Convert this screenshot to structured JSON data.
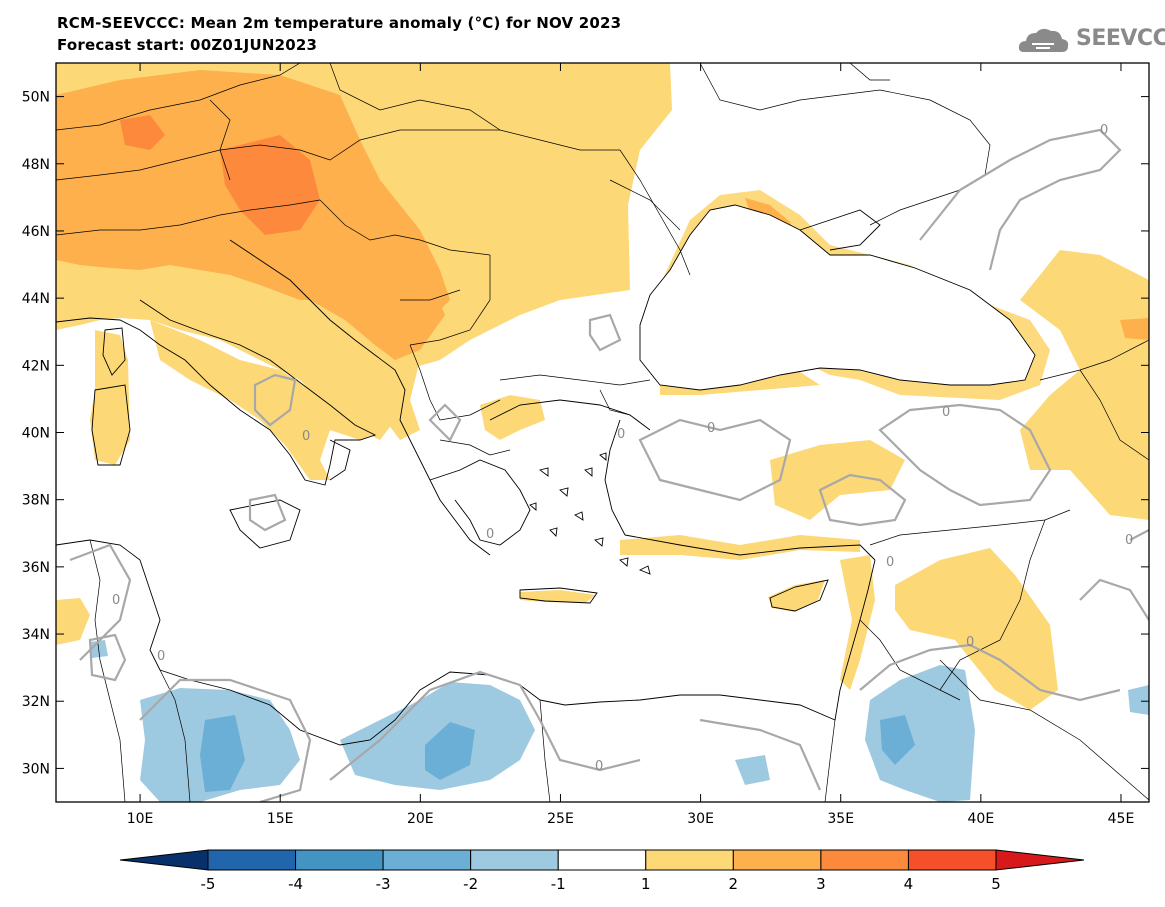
{
  "header": {
    "title_line1": "RCM-SEEVCCC: Mean 2m temperature anomaly (°C) for NOV 2023",
    "title_line2": "Forecast start: 00Z01JUN2023",
    "logo_text": "SEEVCCC"
  },
  "map": {
    "lon_range": [
      7,
      46
    ],
    "lat_range": [
      29,
      51
    ],
    "lat_ticks": [
      {
        "value": 50,
        "label": "50N"
      },
      {
        "value": 48,
        "label": "48N"
      },
      {
        "value": 46,
        "label": "46N"
      },
      {
        "value": 44,
        "label": "44N"
      },
      {
        "value": 42,
        "label": "42N"
      },
      {
        "value": 40,
        "label": "40N"
      },
      {
        "value": 38,
        "label": "38N"
      },
      {
        "value": 36,
        "label": "36N"
      },
      {
        "value": 34,
        "label": "34N"
      },
      {
        "value": 32,
        "label": "32N"
      },
      {
        "value": 30,
        "label": "30N"
      }
    ],
    "lon_ticks": [
      {
        "value": 10,
        "label": "10E"
      },
      {
        "value": 15,
        "label": "15E"
      },
      {
        "value": 20,
        "label": "20E"
      },
      {
        "value": 25,
        "label": "25E"
      },
      {
        "value": 30,
        "label": "30E"
      },
      {
        "value": 35,
        "label": "35E"
      },
      {
        "value": 40,
        "label": "40E"
      },
      {
        "value": 45,
        "label": "45E"
      }
    ],
    "contour_zero_label": "0"
  },
  "colorbar": {
    "labels": [
      "-5",
      "-4",
      "-3",
      "-2",
      "-1",
      "1",
      "2",
      "3",
      "4",
      "5"
    ],
    "colors": {
      "below_min": "#08306b",
      "neg5_neg4": "#2166ac",
      "neg4_neg3": "#4393c3",
      "neg3_neg2": "#6baed6",
      "neg2_neg1": "#9ecae1",
      "neg1_pos1": "#ffffff",
      "pos1_pos2": "#fdd877",
      "pos2_pos3": "#fdb04b",
      "pos3_pos4": "#fd8a3c",
      "pos4_pos5": "#f5502a",
      "above_max": "#d7191c"
    }
  }
}
